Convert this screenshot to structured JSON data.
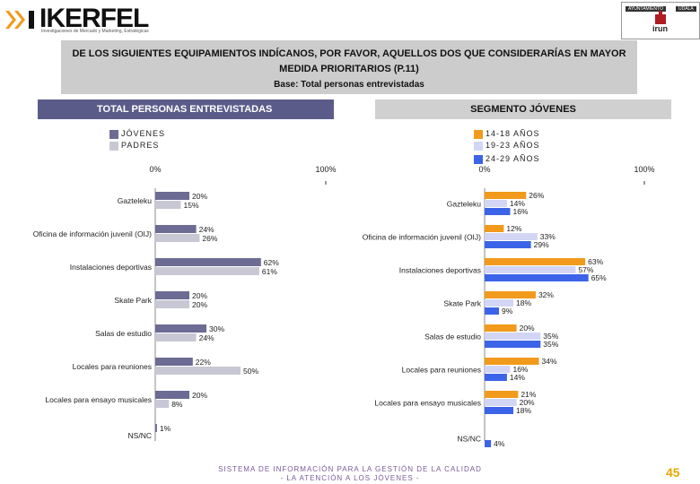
{
  "header": {
    "brand": "IKERFEL",
    "brand_tagline": "Investigaciones de Mercado y Marketing, Estratégicas",
    "crest_caption_left": "AYUNTAMIENTO",
    "crest_caption_right": "UDALA",
    "crest_name": "irun"
  },
  "title": {
    "line1": "DE LOS SIGUIENTES EQUIPAMIENTOS INDÍCANOS, POR FAVOR, AQUELLOS DOS QUE CONSIDERARÍAS EN MAYOR",
    "line2": "MEDIDA PRIORITARIOS (P.11)",
    "line3": "Base: Total personas entrevistadas"
  },
  "footer": {
    "line1": "SISTEMA DE INFORMACIÓN PARA LA GESTIÓN DE LA CALIDAD",
    "line2": "- LA ATENCIÓN A LOS JÓVENES -",
    "page": "45"
  },
  "colors": {
    "jovenes": "#6b6b94",
    "padres": "#c8c8d4",
    "age_14_18": "#f29a1c",
    "age_19_23": "#d2d6f4",
    "age_24_29": "#3c64e8"
  },
  "chart_data": [
    {
      "type": "bar",
      "orientation": "horizontal",
      "title": "TOTAL PERSONAS ENTREVISTADAS",
      "xlim": [
        0,
        100
      ],
      "xticks": [
        "0%",
        "100%"
      ],
      "categories": [
        "Gazteleku",
        "Oficina de información juvenil (OIJ)",
        "Instalaciones deportivas",
        "Skate Park",
        "Salas de estudio",
        "Locales para reuniones",
        "Locales para ensayo musicales",
        "NS/NC"
      ],
      "series": [
        {
          "name": "JÓVENES",
          "color": "#6b6b94",
          "values": [
            20,
            24,
            62,
            20,
            30,
            22,
            20,
            1
          ],
          "labels": [
            "20%",
            "24%",
            "62%",
            "20%",
            "30%",
            "22%",
            "20%",
            "1%"
          ]
        },
        {
          "name": "PADRES",
          "color": "#c8c8d4",
          "values": [
            15,
            26,
            61,
            20,
            24,
            50,
            8,
            null
          ],
          "labels": [
            "15%",
            "26%",
            "61%",
            "20%",
            "24%",
            "50%",
            "8%",
            ""
          ]
        }
      ]
    },
    {
      "type": "bar",
      "orientation": "horizontal",
      "title": "SEGMENTO JÓVENES",
      "xlim": [
        0,
        100
      ],
      "xticks": [
        "0%",
        "100%"
      ],
      "categories": [
        "Gazteleku",
        "Oficina de información juvenil (OIJ)",
        "Instalaciones deportivas",
        "Skate Park",
        "Salas de estudio",
        "Locales para reuniones",
        "Locales para ensayo musicales",
        "NS/NC"
      ],
      "series": [
        {
          "name": "14-18 AÑOS",
          "color": "#f29a1c",
          "values": [
            26,
            12,
            63,
            32,
            20,
            34,
            21,
            null
          ],
          "labels": [
            "26%",
            "12%",
            "63%",
            "32%",
            "20%",
            "34%",
            "21%",
            ""
          ]
        },
        {
          "name": "19-23 AÑOS",
          "color": "#d2d6f4",
          "values": [
            14,
            33,
            57,
            18,
            35,
            16,
            20,
            null
          ],
          "labels": [
            "14%",
            "33%",
            "57%",
            "18%",
            "35%",
            "16%",
            "20%",
            ""
          ]
        },
        {
          "name": "24-29 AÑOS",
          "color": "#3c64e8",
          "values": [
            16,
            29,
            65,
            9,
            35,
            14,
            18,
            4
          ],
          "labels": [
            "16%",
            "29%",
            "65%",
            "9%",
            "35%",
            "14%",
            "18%",
            "4%"
          ]
        }
      ]
    }
  ]
}
